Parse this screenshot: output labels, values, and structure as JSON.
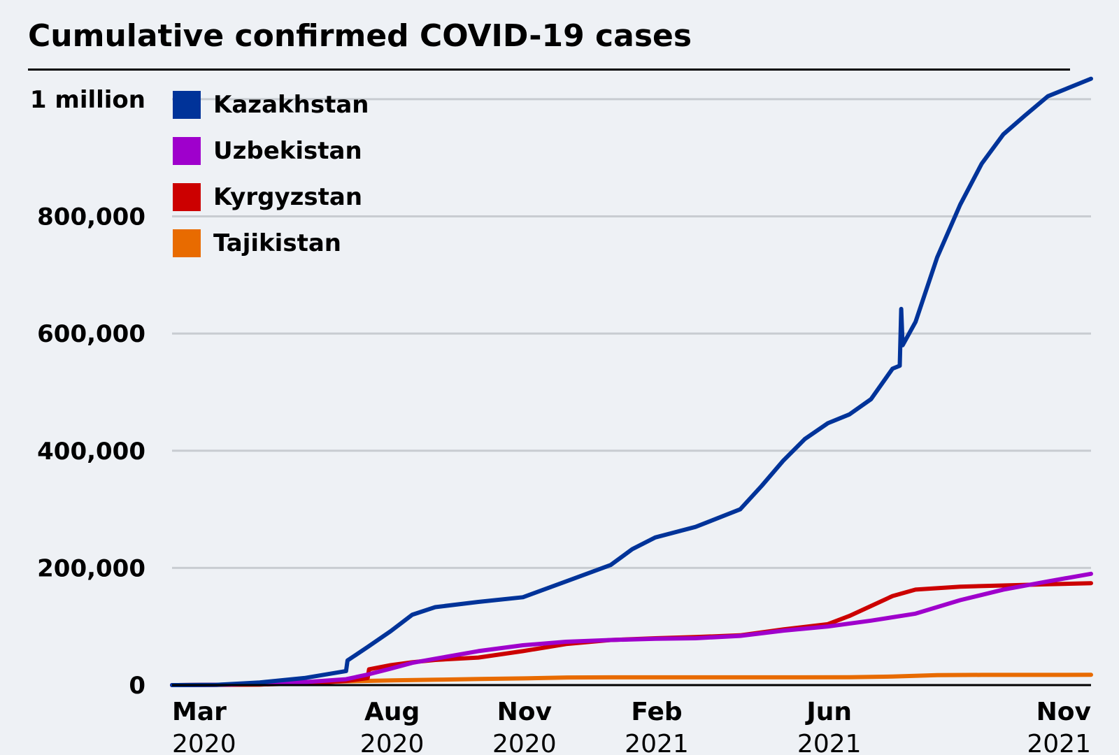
{
  "chart_data": {
    "type": "line",
    "title": "Cumulative confirmed COVID-19 cases",
    "xlabel": "",
    "ylabel": "",
    "ylim": [
      0,
      1050000
    ],
    "xlim": [
      "2020-03-01",
      "2021-11-30"
    ],
    "grid": true,
    "legend_position": "top-left",
    "y_ticks": [
      {
        "value": 0,
        "label": "0"
      },
      {
        "value": 200000,
        "label": "200,000"
      },
      {
        "value": 400000,
        "label": "400,000"
      },
      {
        "value": 600000,
        "label": "600,000"
      },
      {
        "value": 800000,
        "label": "800,000"
      },
      {
        "value": 1000000,
        "label": "1 million"
      }
    ],
    "x_ticks": [
      {
        "date": "2020-03-01",
        "month": "Mar",
        "year": "2020"
      },
      {
        "date": "2020-08-01",
        "month": "Aug",
        "year": "2020"
      },
      {
        "date": "2020-11-01",
        "month": "Nov",
        "year": "2020"
      },
      {
        "date": "2021-02-01",
        "month": "Feb",
        "year": "2021"
      },
      {
        "date": "2021-06-01",
        "month": "Jun",
        "year": "2021"
      },
      {
        "date": "2021-11-01",
        "month": "Nov",
        "year": "2021"
      }
    ],
    "series": [
      {
        "name": "Kazakhstan",
        "color": "#003399",
        "points": [
          [
            "2020-03-01",
            0
          ],
          [
            "2020-04-01",
            500
          ],
          [
            "2020-05-01",
            4500
          ],
          [
            "2020-06-01",
            12000
          ],
          [
            "2020-06-30",
            24000
          ],
          [
            "2020-07-01",
            42000
          ],
          [
            "2020-07-15",
            65000
          ],
          [
            "2020-07-31",
            92000
          ],
          [
            "2020-08-15",
            120000
          ],
          [
            "2020-08-31",
            133000
          ],
          [
            "2020-09-30",
            142000
          ],
          [
            "2020-10-31",
            150000
          ],
          [
            "2020-11-30",
            177000
          ],
          [
            "2020-12-31",
            205000
          ],
          [
            "2021-01-15",
            232000
          ],
          [
            "2021-01-31",
            252000
          ],
          [
            "2021-02-28",
            270000
          ],
          [
            "2021-03-31",
            300000
          ],
          [
            "2021-04-15",
            340000
          ],
          [
            "2021-04-30",
            383000
          ],
          [
            "2021-05-15",
            420000
          ],
          [
            "2021-05-31",
            447000
          ],
          [
            "2021-06-15",
            462000
          ],
          [
            "2021-06-30",
            488000
          ],
          [
            "2021-07-15",
            540000
          ],
          [
            "2021-07-20",
            545000
          ],
          [
            "2021-07-21",
            642000
          ],
          [
            "2021-07-22",
            580000
          ],
          [
            "2021-07-31",
            620000
          ],
          [
            "2021-08-15",
            730000
          ],
          [
            "2021-08-31",
            820000
          ],
          [
            "2021-09-15",
            890000
          ],
          [
            "2021-09-30",
            940000
          ],
          [
            "2021-10-15",
            972000
          ],
          [
            "2021-10-31",
            1005000
          ],
          [
            "2021-11-30",
            1035000
          ]
        ]
      },
      {
        "name": "Uzbekistan",
        "color": "#9f00cc",
        "points": [
          [
            "2020-03-01",
            0
          ],
          [
            "2020-04-01",
            500
          ],
          [
            "2020-05-01",
            2500
          ],
          [
            "2020-06-01",
            5000
          ],
          [
            "2020-06-30",
            10000
          ],
          [
            "2020-07-15",
            18000
          ],
          [
            "2020-07-31",
            28000
          ],
          [
            "2020-08-15",
            38000
          ],
          [
            "2020-08-31",
            45000
          ],
          [
            "2020-09-30",
            58000
          ],
          [
            "2020-10-31",
            68000
          ],
          [
            "2020-11-30",
            74000
          ],
          [
            "2020-12-31",
            77000
          ],
          [
            "2021-01-31",
            79000
          ],
          [
            "2021-02-28",
            80000
          ],
          [
            "2021-03-31",
            84000
          ],
          [
            "2021-04-30",
            93000
          ],
          [
            "2021-05-31",
            100000
          ],
          [
            "2021-06-30",
            110000
          ],
          [
            "2021-07-31",
            122000
          ],
          [
            "2021-08-31",
            145000
          ],
          [
            "2021-09-30",
            163000
          ],
          [
            "2021-10-31",
            177000
          ],
          [
            "2021-11-30",
            190000
          ]
        ]
      },
      {
        "name": "Kyrgyzstan",
        "color": "#cc0000",
        "points": [
          [
            "2020-03-01",
            0
          ],
          [
            "2020-05-01",
            1000
          ],
          [
            "2020-06-01",
            3000
          ],
          [
            "2020-06-30",
            7000
          ],
          [
            "2020-07-15",
            12000
          ],
          [
            "2020-07-16",
            27000
          ],
          [
            "2020-07-31",
            34000
          ],
          [
            "2020-08-15",
            39000
          ],
          [
            "2020-08-31",
            43000
          ],
          [
            "2020-09-30",
            47000
          ],
          [
            "2020-10-31",
            58000
          ],
          [
            "2020-11-30",
            70000
          ],
          [
            "2020-12-31",
            77000
          ],
          [
            "2021-01-31",
            80000
          ],
          [
            "2021-02-28",
            82000
          ],
          [
            "2021-03-31",
            85000
          ],
          [
            "2021-04-30",
            95000
          ],
          [
            "2021-05-31",
            104000
          ],
          [
            "2021-06-15",
            118000
          ],
          [
            "2021-06-30",
            135000
          ],
          [
            "2021-07-15",
            152000
          ],
          [
            "2021-07-31",
            163000
          ],
          [
            "2021-08-31",
            168000
          ],
          [
            "2021-09-30",
            170000
          ],
          [
            "2021-10-31",
            172000
          ],
          [
            "2021-11-30",
            174000
          ]
        ]
      },
      {
        "name": "Tajikistan",
        "color": "#e86b00",
        "points": [
          [
            "2020-03-01",
            0
          ],
          [
            "2020-05-01",
            1000
          ],
          [
            "2020-06-01",
            4500
          ],
          [
            "2020-07-01",
            6500
          ],
          [
            "2020-08-01",
            8000
          ],
          [
            "2020-09-01",
            9200
          ],
          [
            "2020-10-01",
            10500
          ],
          [
            "2020-11-01",
            11500
          ],
          [
            "2020-12-01",
            13000
          ],
          [
            "2021-01-01",
            13300
          ],
          [
            "2021-03-01",
            13300
          ],
          [
            "2021-05-01",
            13300
          ],
          [
            "2021-06-15",
            13500
          ],
          [
            "2021-07-15",
            14500
          ],
          [
            "2021-08-15",
            17000
          ],
          [
            "2021-09-15",
            17400
          ],
          [
            "2021-11-30",
            17500
          ]
        ]
      }
    ]
  }
}
